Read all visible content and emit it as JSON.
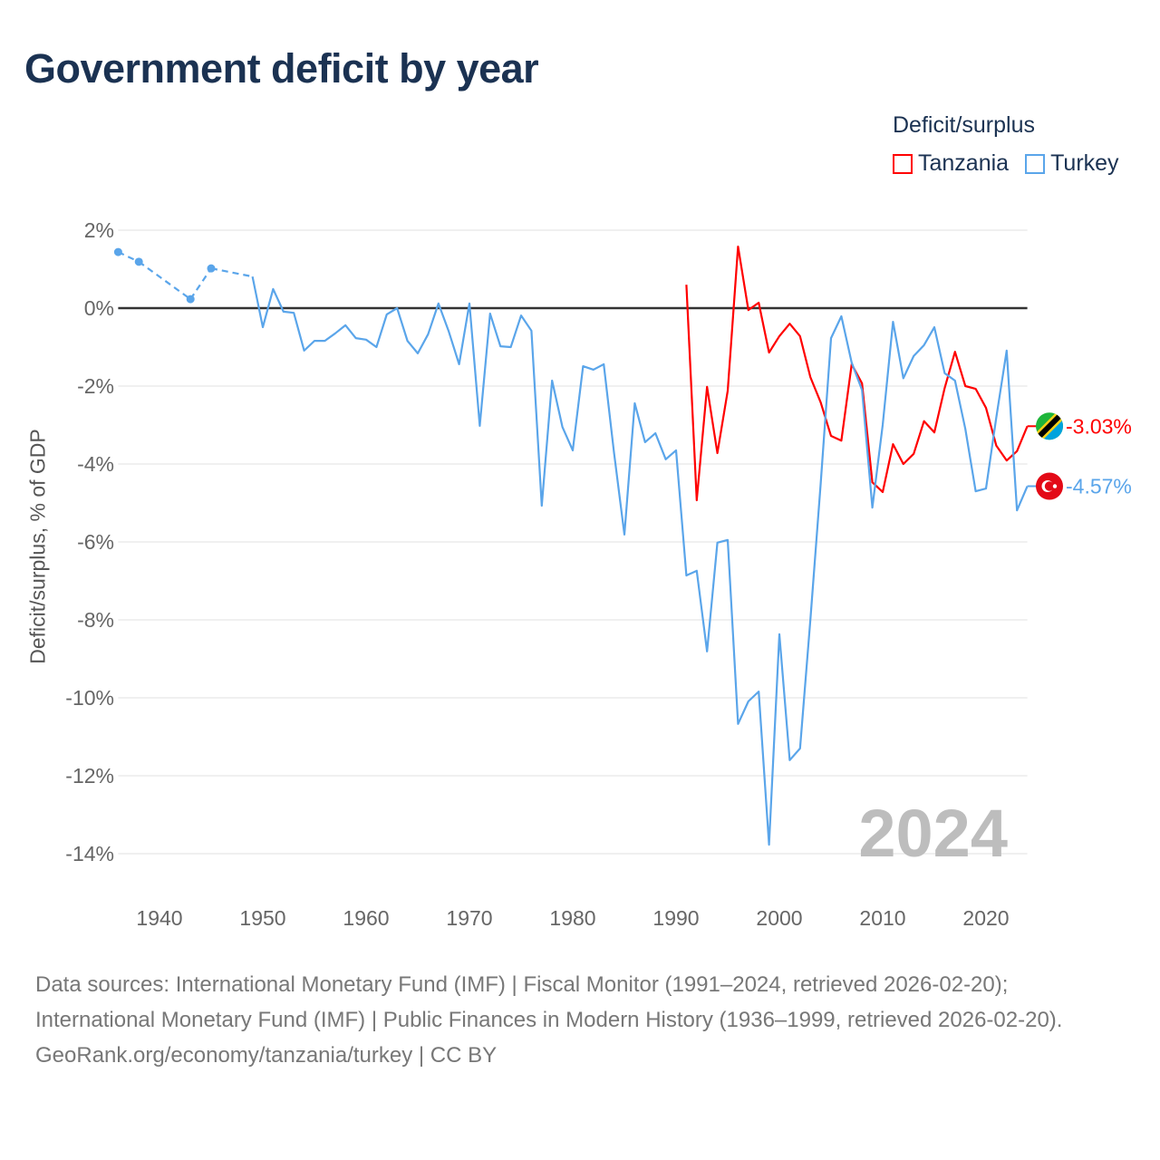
{
  "title": "Government deficit by year",
  "legend": {
    "title": "Deficit/surplus",
    "items": [
      {
        "name": "Tanzania",
        "color": "#ff0000"
      },
      {
        "name": "Turkey",
        "color": "#5aa5ea"
      }
    ]
  },
  "footer": {
    "sources": "Data sources: International Monetary Fund (IMF) | Fiscal Monitor (1991–2024, retrieved 2026-02-20); International Monetary Fund (IMF) | Public Finances in Modern History (1936–1999, retrieved 2026-02-20).",
    "credit": "GeoRank.org/economy/tanzania/turkey | CC BY"
  },
  "chart_data": {
    "type": "line",
    "title": "Government deficit by year",
    "xlabel": "",
    "ylabel": "Deficit/surplus, % of GDP",
    "xlim": [
      1936,
      2024
    ],
    "ylim": [
      -14,
      2
    ],
    "x_ticks": [
      1940,
      1950,
      1960,
      1970,
      1980,
      1990,
      2000,
      2010,
      2020
    ],
    "x_tick_labels": [
      "1940",
      "1950",
      "1960",
      "1970",
      "1980",
      "1990",
      "2000",
      "2010",
      "2020"
    ],
    "y_ticks": [
      2,
      0,
      -2,
      -4,
      -6,
      -8,
      -10,
      -12,
      -14
    ],
    "y_tick_labels": [
      "2%",
      "0%",
      "-2%",
      "-4%",
      "-6%",
      "-8%",
      "-10%",
      "-12%",
      "-14%"
    ],
    "grid": true,
    "legend_position": "top-right",
    "current_year_label": "2024",
    "series": [
      {
        "name": "Tanzania",
        "color": "#ff0000",
        "end_label": "-3.03%",
        "flag": "tanzania-flag",
        "x": [
          1991,
          1992,
          1993,
          1994,
          1995,
          1996,
          1997,
          1998,
          1999,
          2000,
          2001,
          2002,
          2003,
          2004,
          2005,
          2006,
          2007,
          2008,
          2009,
          2010,
          2011,
          2012,
          2013,
          2014,
          2015,
          2016,
          2017,
          2018,
          2019,
          2020,
          2021,
          2022,
          2023,
          2024
        ],
        "y": [
          0.6,
          -4.93,
          -2.02,
          -3.72,
          -2.12,
          1.58,
          -0.05,
          0.14,
          -1.14,
          -0.72,
          -0.4,
          -0.72,
          -1.77,
          -2.42,
          -3.28,
          -3.4,
          -1.44,
          -1.93,
          -4.47,
          -4.72,
          -3.49,
          -4.0,
          -3.74,
          -2.9,
          -3.19,
          -2.05,
          -1.12,
          -2.0,
          -2.07,
          -2.56,
          -3.53,
          -3.91,
          -3.67,
          -3.03
        ]
      },
      {
        "name": "Turkey",
        "color": "#5aa5ea",
        "end_label": "-4.57%",
        "flag": "turkey-flag",
        "x": [
          1936,
          1938,
          1943,
          1945,
          1949,
          1950,
          1951,
          1952,
          1953,
          1954,
          1955,
          1956,
          1957,
          1958,
          1959,
          1960,
          1961,
          1962,
          1963,
          1964,
          1965,
          1966,
          1967,
          1968,
          1969,
          1970,
          1971,
          1972,
          1973,
          1974,
          1975,
          1976,
          1977,
          1978,
          1979,
          1980,
          1981,
          1982,
          1983,
          1984,
          1985,
          1986,
          1987,
          1988,
          1989,
          1990,
          1991,
          1992,
          1993,
          1994,
          1995,
          1996,
          1997,
          1998,
          1999,
          2000,
          2001,
          2002,
          2003,
          2004,
          2005,
          2006,
          2007,
          2008,
          2009,
          2010,
          2011,
          2012,
          2013,
          2014,
          2015,
          2016,
          2017,
          2018,
          2019,
          2020,
          2021,
          2022,
          2023,
          2024
        ],
        "y": [
          1.44,
          1.19,
          0.23,
          1.02,
          0.81,
          -0.49,
          0.49,
          -0.09,
          -0.12,
          -1.09,
          -0.84,
          -0.84,
          -0.65,
          -0.44,
          -0.77,
          -0.81,
          -1.0,
          -0.16,
          0.0,
          -0.84,
          -1.16,
          -0.67,
          0.12,
          -0.6,
          -1.44,
          0.12,
          -3.02,
          -0.14,
          -0.98,
          -1.0,
          -0.19,
          -0.58,
          -5.07,
          -1.86,
          -3.05,
          -3.65,
          -1.49,
          -1.58,
          -1.44,
          -3.72,
          -5.81,
          -2.44,
          -3.44,
          -3.21,
          -3.88,
          -3.65,
          -6.86,
          -6.74,
          -8.81,
          -6.02,
          -5.95,
          -10.67,
          -10.09,
          -9.84,
          -13.77,
          -8.37,
          -11.6,
          -11.3,
          -8.0,
          -4.5,
          -0.77,
          -0.21,
          -1.4,
          -2.1,
          -5.12,
          -3.0,
          -0.35,
          -1.8,
          -1.23,
          -0.95,
          -0.49,
          -1.67,
          -1.86,
          -3.1,
          -4.7,
          -4.63,
          -2.8,
          -1.09,
          -5.19,
          -4.57
        ]
      }
    ]
  }
}
